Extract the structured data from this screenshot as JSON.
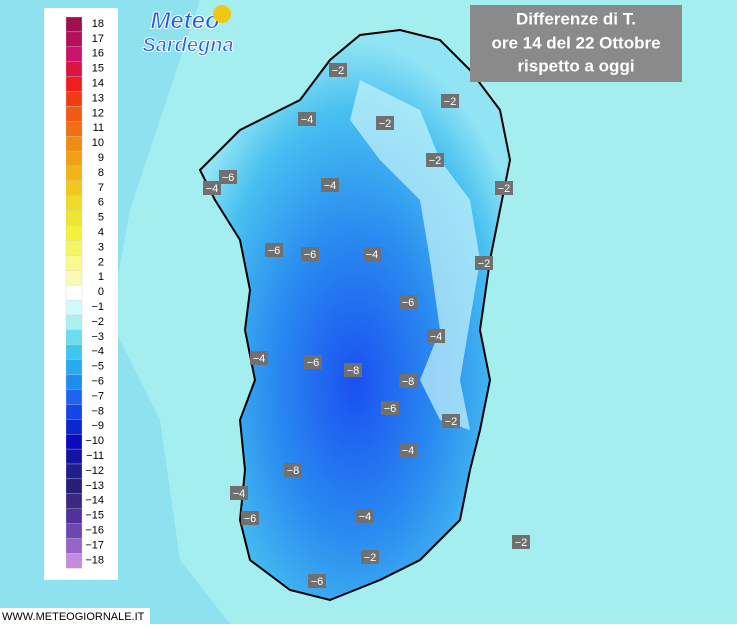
{
  "logo": [
    "Meteo",
    "Sardegna"
  ],
  "title": [
    "Differenze di T.",
    "ore 14 del 22 Ottobre",
    "rispetto a oggi"
  ],
  "footer": "WWW.METEOGIORNALE.IT",
  "legend": {
    "labels": [
      "18",
      "17",
      "16",
      "15",
      "14",
      "13",
      "12",
      "11",
      "10",
      "9",
      "8",
      "7",
      "6",
      "5",
      "4",
      "3",
      "2",
      "1",
      "0",
      "−1",
      "−2",
      "−3",
      "−4",
      "−5",
      "−6",
      "−7",
      "−8",
      "−9",
      "−10",
      "−11",
      "−12",
      "−13",
      "−14",
      "−15",
      "−16",
      "−17",
      "−18"
    ],
    "colors": [
      "#a0104e",
      "#b4105a",
      "#c8146e",
      "#dc1446",
      "#f01e1e",
      "#f03c14",
      "#f05a14",
      "#f06e14",
      "#f08c14",
      "#f0a014",
      "#f0b414",
      "#f0c81e",
      "#f0dc28",
      "#f0e632",
      "#f5f03c",
      "#f5f564",
      "#fafa8c",
      "#fafab4",
      "#ffffff",
      "#d2fafa",
      "#aaf0f0",
      "#6edcf0",
      "#3cc8f0",
      "#28aaf0",
      "#1e8cf0",
      "#1e64f0",
      "#1446e6",
      "#0a28d2",
      "#0a0abe",
      "#1414a0",
      "#1e1e8c",
      "#281e78",
      "#3c2882",
      "#50329b",
      "#6e46b4",
      "#9664c8",
      "#c38cdc"
    ]
  },
  "map_labels": [
    "−2",
    "−2",
    "−4",
    "−2",
    "−2",
    "−6",
    "−4",
    "−4",
    "−2",
    "−6",
    "−6",
    "−4",
    "−2",
    "−6",
    "−4",
    "−4",
    "−6",
    "−8",
    "−8",
    "−6",
    "−2",
    "−4",
    "−8",
    "−4",
    "−6",
    "−4",
    "−2",
    "−2",
    "−6"
  ]
}
